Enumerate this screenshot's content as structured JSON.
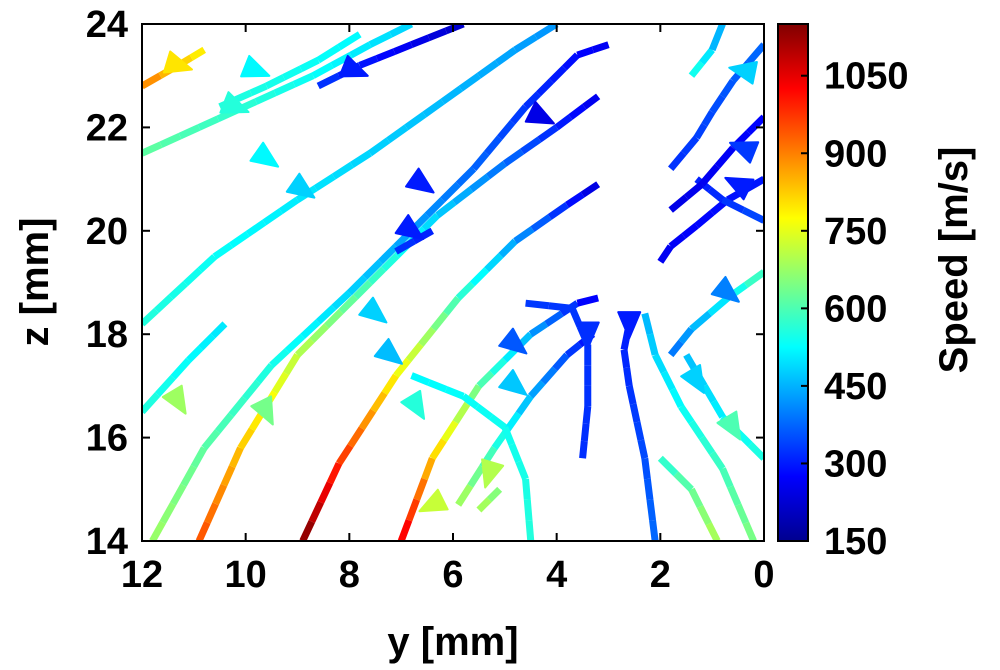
{
  "chart_data": {
    "type": "streamline",
    "xlabel": "y [mm]",
    "ylabel": "z [mm]",
    "xlim": [
      12,
      0
    ],
    "ylim": [
      14,
      24
    ],
    "x_reversed": true,
    "x_ticks": [
      "12",
      "10",
      "8",
      "6",
      "4",
      "2",
      "0"
    ],
    "y_ticks": [
      "14",
      "16",
      "18",
      "20",
      "22",
      "24"
    ],
    "grid": false,
    "colorbar": {
      "label": "Speed [m/s]",
      "range": [
        150,
        1150
      ],
      "ticks": [
        "150",
        "300",
        "450",
        "600",
        "750",
        "900",
        "1050"
      ],
      "colormap": "jet"
    },
    "streamlines": [
      {
        "speed_start": 560,
        "speed_end": 420,
        "points": [
          [
            12.0,
            18.2
          ],
          [
            10.6,
            19.5
          ],
          [
            9.0,
            20.6
          ],
          [
            7.6,
            21.5
          ],
          [
            6.2,
            22.5
          ],
          [
            4.8,
            23.5
          ],
          [
            4.0,
            24.0
          ]
        ]
      },
      {
        "speed_start": 620,
        "speed_end": 480,
        "points": [
          [
            12.0,
            21.5
          ],
          [
            10.9,
            22.0
          ],
          [
            9.8,
            22.5
          ],
          [
            8.7,
            23.0
          ],
          [
            7.6,
            23.6
          ],
          [
            6.8,
            24.0
          ]
        ]
      },
      {
        "speed_start": 560,
        "speed_end": 520,
        "points": [
          [
            10.5,
            22.4
          ],
          [
            9.6,
            22.8
          ],
          [
            8.6,
            23.3
          ],
          [
            7.8,
            23.8
          ]
        ]
      },
      {
        "speed_start": 900,
        "speed_end": 780,
        "points": [
          [
            12.0,
            22.8
          ],
          [
            11.3,
            23.2
          ],
          [
            10.8,
            23.5
          ]
        ]
      },
      {
        "speed_start": 330,
        "speed_end": 220,
        "points": [
          [
            8.6,
            22.8
          ],
          [
            7.8,
            23.2
          ],
          [
            6.8,
            23.6
          ],
          [
            5.8,
            24.0
          ]
        ]
      },
      {
        "speed_start": 680,
        "speed_end": 260,
        "points": [
          [
            11.8,
            14.0
          ],
          [
            10.8,
            15.8
          ],
          [
            9.5,
            17.4
          ],
          [
            8.0,
            18.8
          ],
          [
            6.8,
            20.0
          ],
          [
            5.6,
            21.2
          ],
          [
            4.6,
            22.4
          ],
          [
            3.6,
            23.4
          ],
          [
            3.0,
            23.6
          ]
        ]
      },
      {
        "speed_start": 950,
        "speed_end": 250,
        "points": [
          [
            10.9,
            14.0
          ],
          [
            10.1,
            15.8
          ],
          [
            9.0,
            17.6
          ],
          [
            7.6,
            19.0
          ],
          [
            6.3,
            20.3
          ],
          [
            5.0,
            21.3
          ],
          [
            4.0,
            22.0
          ],
          [
            3.2,
            22.6
          ]
        ]
      },
      {
        "speed_start": 1150,
        "speed_end": 230,
        "points": [
          [
            8.9,
            14.0
          ],
          [
            8.2,
            15.5
          ],
          [
            7.1,
            17.2
          ],
          [
            5.9,
            18.7
          ],
          [
            4.8,
            19.8
          ],
          [
            3.8,
            20.5
          ],
          [
            3.2,
            20.9
          ]
        ]
      },
      {
        "speed_start": 1050,
        "speed_end": 250,
        "points": [
          [
            7.0,
            14.0
          ],
          [
            6.4,
            15.6
          ],
          [
            5.5,
            17.0
          ],
          [
            4.5,
            18.0
          ],
          [
            3.6,
            18.6
          ],
          [
            3.2,
            18.7
          ]
        ]
      },
      {
        "speed_start": 700,
        "speed_end": 280,
        "points": [
          [
            5.9,
            14.7
          ],
          [
            5.2,
            15.8
          ],
          [
            4.5,
            16.8
          ],
          [
            3.8,
            17.6
          ],
          [
            3.3,
            18.0
          ]
        ]
      },
      {
        "speed_start": 560,
        "speed_end": 500,
        "points": [
          [
            12.0,
            16.5
          ],
          [
            11.1,
            17.5
          ],
          [
            10.4,
            18.2
          ]
        ]
      },
      {
        "speed_start": 330,
        "speed_end": 300,
        "points": [
          [
            7.1,
            19.6
          ],
          [
            6.4,
            20.0
          ]
        ]
      },
      {
        "speed_start": 560,
        "speed_end": 520,
        "points": [
          [
            4.5,
            14.0
          ],
          [
            4.6,
            15.2
          ],
          [
            5.0,
            16.2
          ],
          [
            5.8,
            16.8
          ],
          [
            6.8,
            17.2
          ]
        ]
      },
      {
        "speed_start": 700,
        "speed_end": 640,
        "points": [
          [
            5.5,
            14.6
          ],
          [
            5.3,
            14.8
          ],
          [
            5.1,
            15.0
          ]
        ]
      },
      {
        "speed_start": 320,
        "speed_end": 330,
        "points": [
          [
            3.5,
            15.6
          ],
          [
            3.4,
            16.6
          ],
          [
            3.4,
            17.8
          ],
          [
            3.7,
            18.5
          ],
          [
            4.6,
            18.6
          ]
        ]
      },
      {
        "speed_start": 380,
        "speed_end": 300,
        "points": [
          [
            2.1,
            14.0
          ],
          [
            2.3,
            15.6
          ],
          [
            2.6,
            17.0
          ],
          [
            2.7,
            17.7
          ],
          [
            2.6,
            18.2
          ]
        ]
      },
      {
        "speed_start": 650,
        "speed_end": 450,
        "points": [
          [
            0.2,
            14.0
          ],
          [
            0.8,
            15.4
          ],
          [
            1.6,
            16.6
          ],
          [
            2.1,
            17.6
          ],
          [
            2.3,
            18.4
          ]
        ]
      },
      {
        "speed_start": 600,
        "speed_end": 380,
        "points": [
          [
            0.0,
            19.2
          ],
          [
            0.7,
            18.7
          ],
          [
            1.4,
            18.1
          ],
          [
            1.8,
            17.6
          ]
        ]
      },
      {
        "speed_start": 300,
        "speed_end": 260,
        "points": [
          [
            0.0,
            21.0
          ],
          [
            0.7,
            20.6
          ],
          [
            1.3,
            20.1
          ],
          [
            1.8,
            19.7
          ],
          [
            2.0,
            19.4
          ]
        ]
      },
      {
        "speed_start": 350,
        "speed_end": 300,
        "points": [
          [
            0.0,
            20.2
          ],
          [
            0.8,
            20.6
          ],
          [
            1.3,
            21.0
          ]
        ]
      },
      {
        "speed_start": 280,
        "speed_end": 250,
        "points": [
          [
            0.0,
            22.2
          ],
          [
            0.6,
            21.6
          ],
          [
            1.2,
            20.9
          ],
          [
            1.8,
            20.4
          ]
        ]
      },
      {
        "speed_start": 380,
        "speed_end": 320,
        "points": [
          [
            0.0,
            23.6
          ],
          [
            0.6,
            22.9
          ],
          [
            1.0,
            22.3
          ],
          [
            1.3,
            21.8
          ],
          [
            1.8,
            21.2
          ]
        ]
      },
      {
        "speed_start": 560,
        "speed_end": 460,
        "points": [
          [
            0.0,
            15.6
          ],
          [
            0.8,
            16.4
          ],
          [
            1.5,
            17.6
          ]
        ]
      },
      {
        "speed_start": 700,
        "speed_end": 560,
        "points": [
          [
            0.9,
            14.0
          ],
          [
            1.4,
            15.0
          ],
          [
            2.0,
            15.6
          ]
        ]
      },
      {
        "speed_start": 560,
        "speed_end": 420,
        "points": [
          [
            1.4,
            23.0
          ],
          [
            1.0,
            23.5
          ],
          [
            0.8,
            24.0
          ]
        ]
      }
    ],
    "arrows": [
      {
        "at": [
          11.3,
          23.2
        ],
        "dir": [
          -1,
          -0.3
        ],
        "speed": 800
      },
      {
        "at": [
          9.8,
          23.1
        ],
        "dir": [
          -1,
          -0.4
        ],
        "speed": 520
      },
      {
        "at": [
          10.2,
          22.4
        ],
        "dir": [
          -1,
          -0.4
        ],
        "speed": 560
      },
      {
        "at": [
          7.9,
          23.1
        ],
        "dir": [
          -1,
          -0.4
        ],
        "speed": 300
      },
      {
        "at": [
          9.6,
          21.4
        ],
        "dir": [
          -1,
          -0.7
        ],
        "speed": 520
      },
      {
        "at": [
          8.9,
          20.8
        ],
        "dir": [
          -1,
          -0.7
        ],
        "speed": 480
      },
      {
        "at": [
          6.6,
          20.9
        ],
        "dir": [
          -1,
          -0.7
        ],
        "speed": 300
      },
      {
        "at": [
          6.8,
          20.0
        ],
        "dir": [
          -1,
          -0.7
        ],
        "speed": 300
      },
      {
        "at": [
          4.3,
          22.2
        ],
        "dir": [
          -1,
          -0.5
        ],
        "speed": 250
      },
      {
        "at": [
          7.5,
          18.4
        ],
        "dir": [
          -1,
          -0.8
        ],
        "speed": 480
      },
      {
        "at": [
          7.2,
          17.6
        ],
        "dir": [
          -1,
          -0.8
        ],
        "speed": 460
      },
      {
        "at": [
          4.8,
          17.8
        ],
        "dir": [
          -1,
          -0.8
        ],
        "speed": 360
      },
      {
        "at": [
          4.8,
          17.0
        ],
        "dir": [
          -1,
          -0.8
        ],
        "speed": 470
      },
      {
        "at": [
          11.3,
          16.7
        ],
        "dir": [
          -0.6,
          -1
        ],
        "speed": 680
      },
      {
        "at": [
          9.6,
          16.5
        ],
        "dir": [
          -0.5,
          -1
        ],
        "speed": 640
      },
      {
        "at": [
          6.7,
          16.6
        ],
        "dir": [
          -0.6,
          -1
        ],
        "speed": 560
      },
      {
        "at": [
          5.3,
          15.3
        ],
        "dir": [
          0.3,
          -1
        ],
        "speed": 700
      },
      {
        "at": [
          6.4,
          14.7
        ],
        "dir": [
          1,
          -0.5
        ],
        "speed": 720
      },
      {
        "at": [
          3.4,
          18.0
        ],
        "dir": [
          0,
          -1
        ],
        "speed": 320
      },
      {
        "at": [
          2.6,
          18.2
        ],
        "dir": [
          0,
          -1
        ],
        "speed": 300
      },
      {
        "at": [
          0.7,
          18.8
        ],
        "dir": [
          -1,
          -0.8
        ],
        "speed": 400
      },
      {
        "at": [
          1.3,
          17.1
        ],
        "dir": [
          -0.6,
          -1
        ],
        "speed": 480
      },
      {
        "at": [
          0.6,
          16.2
        ],
        "dir": [
          -0.6,
          -1
        ],
        "speed": 600
      },
      {
        "at": [
          0.4,
          23.1
        ],
        "dir": [
          1,
          0.2
        ],
        "speed": 480
      },
      {
        "at": [
          0.4,
          21.6
        ],
        "dir": [
          1,
          0.4
        ],
        "speed": 330
      },
      {
        "at": [
          0.5,
          20.9
        ],
        "dir": [
          1,
          0.5
        ],
        "speed": 300
      }
    ]
  }
}
